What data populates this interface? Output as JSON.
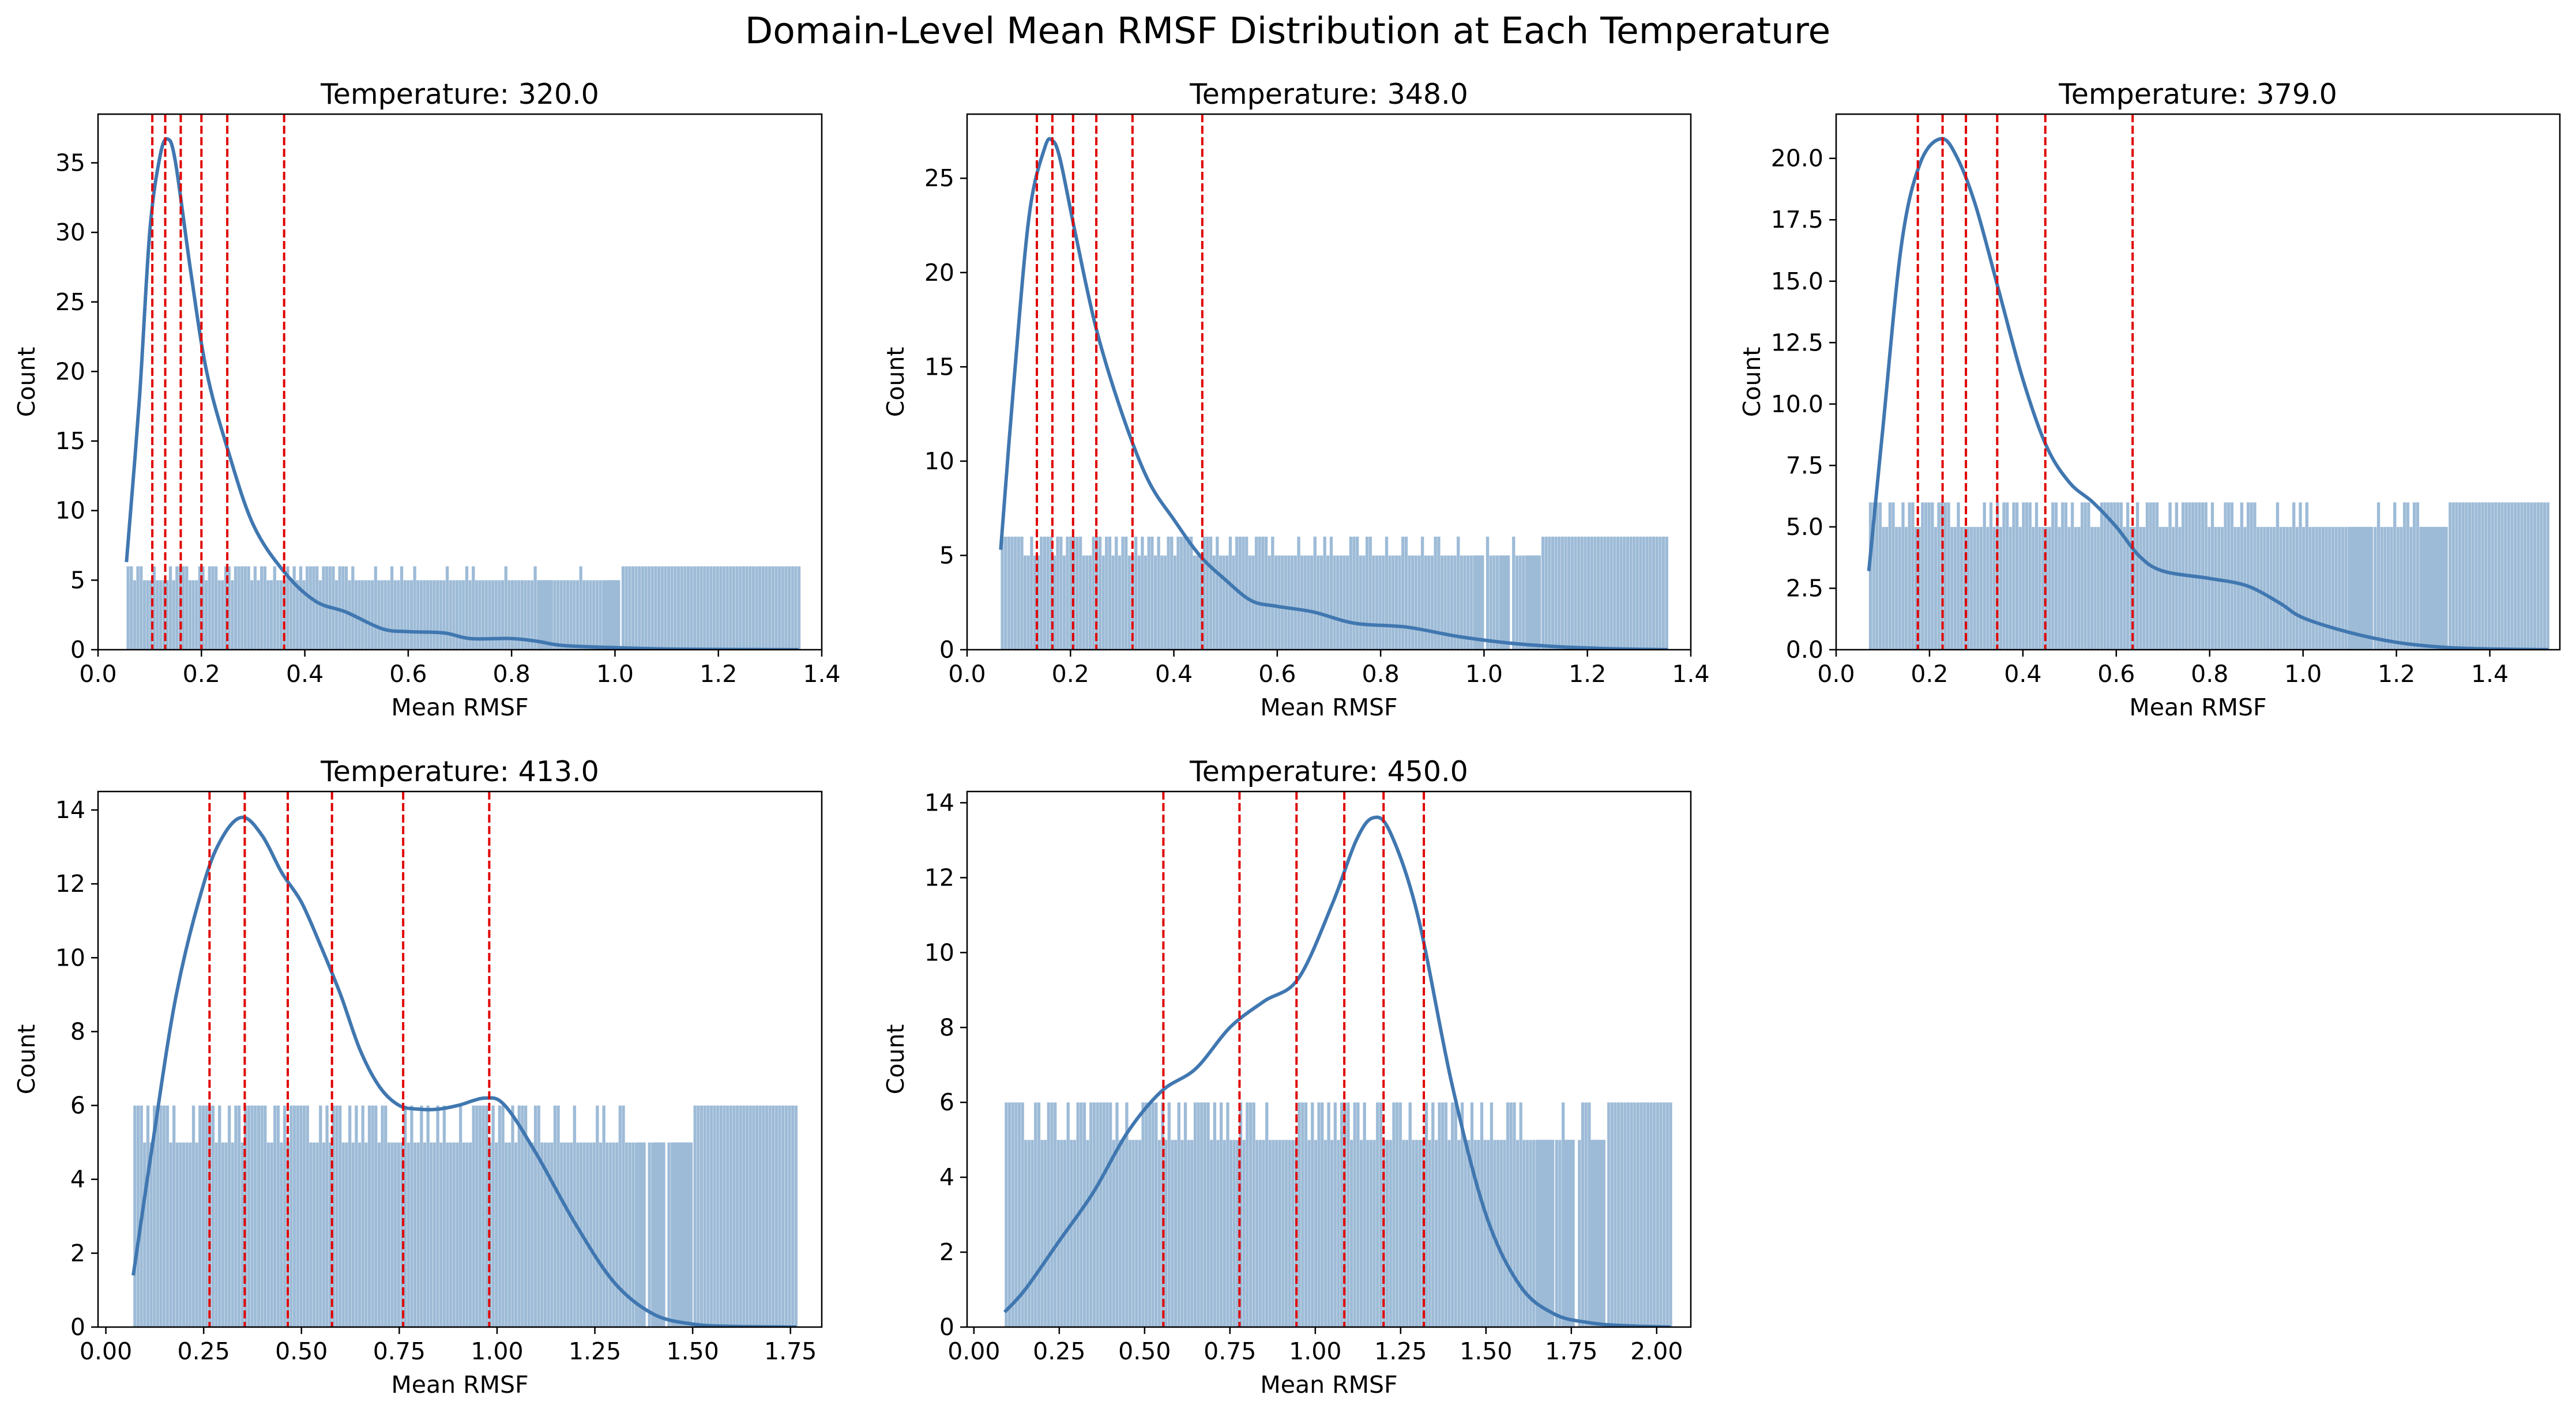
{
  "figure": {
    "title": "Domain-Level Mean RMSF Distribution at Each Temperature",
    "colors": {
      "hist": "#9dbbd7",
      "kde": "#4077b0",
      "vline": "#e00000",
      "axis": "#000000"
    }
  },
  "chart_data": [
    {
      "type": "bar",
      "title": "Temperature: 320.0",
      "xlabel": "Mean RMSF",
      "ylabel": "Count",
      "xlim": [
        0.0,
        1.4
      ],
      "ylim": [
        0,
        38.5
      ],
      "xticks": [
        0.0,
        0.2,
        0.4,
        0.6,
        0.8,
        1.0,
        1.2,
        1.4
      ],
      "xtick_labels": [
        "0.0",
        "0.2",
        "0.4",
        "0.6",
        "0.8",
        "1.0",
        "1.2",
        "1.4"
      ],
      "yticks": [
        0,
        5,
        10,
        15,
        20,
        25,
        30,
        35
      ],
      "ytick_labels": [
        "0",
        "5",
        "10",
        "15",
        "20",
        "25",
        "30",
        "35"
      ],
      "histogram": {
        "x_range": [
          0.055,
          1.355
        ],
        "base_count": 5,
        "top_count": 6,
        "gaps": [
          [
            0.85,
            0.88
          ],
          [
            0.98,
            1.01
          ]
        ],
        "solid_from": 1.01,
        "spike_density_end": 0.6
      },
      "kde": [
        [
          0.055,
          6.3
        ],
        [
          0.08,
          18
        ],
        [
          0.1,
          30
        ],
        [
          0.12,
          35.5
        ],
        [
          0.135,
          36.7
        ],
        [
          0.15,
          35
        ],
        [
          0.18,
          27
        ],
        [
          0.21,
          20
        ],
        [
          0.25,
          14.5
        ],
        [
          0.3,
          9
        ],
        [
          0.36,
          5.6
        ],
        [
          0.42,
          3.5
        ],
        [
          0.48,
          2.7
        ],
        [
          0.55,
          1.5
        ],
        [
          0.6,
          1.3
        ],
        [
          0.67,
          1.2
        ],
        [
          0.72,
          0.8
        ],
        [
          0.8,
          0.8
        ],
        [
          0.85,
          0.6
        ],
        [
          0.9,
          0.3
        ],
        [
          1.0,
          0.15
        ],
        [
          1.1,
          0.05
        ],
        [
          1.2,
          0.02
        ],
        [
          1.355,
          0.0
        ]
      ],
      "vlines": [
        0.105,
        0.13,
        0.16,
        0.2,
        0.25,
        0.36
      ]
    },
    {
      "type": "bar",
      "title": "Temperature: 348.0",
      "xlabel": "Mean RMSF",
      "ylabel": "Count",
      "xlim": [
        0.0,
        1.4
      ],
      "ylim": [
        0,
        28.4
      ],
      "xticks": [
        0.0,
        0.2,
        0.4,
        0.6,
        0.8,
        1.0,
        1.2,
        1.4
      ],
      "xtick_labels": [
        "0.0",
        "0.2",
        "0.4",
        "0.6",
        "0.8",
        "1.0",
        "1.2",
        "1.4"
      ],
      "yticks": [
        0,
        5,
        10,
        15,
        20,
        25
      ],
      "ytick_labels": [
        "0",
        "5",
        "10",
        "15",
        "20",
        "25"
      ],
      "histogram": {
        "x_range": [
          0.065,
          1.355
        ],
        "base_count": 5,
        "top_count": 6,
        "gaps": [
          [
            0.98,
            1.0
          ],
          [
            1.03,
            1.05
          ],
          [
            1.08,
            1.11
          ]
        ],
        "solid_from": 1.11,
        "spike_density_end": 0.8
      },
      "kde": [
        [
          0.065,
          5.3
        ],
        [
          0.09,
          14
        ],
        [
          0.12,
          23
        ],
        [
          0.15,
          26.6
        ],
        [
          0.165,
          27
        ],
        [
          0.18,
          26
        ],
        [
          0.21,
          22
        ],
        [
          0.25,
          17
        ],
        [
          0.3,
          12.5
        ],
        [
          0.35,
          9
        ],
        [
          0.4,
          6.9
        ],
        [
          0.45,
          5
        ],
        [
          0.5,
          3.7
        ],
        [
          0.55,
          2.6
        ],
        [
          0.6,
          2.3
        ],
        [
          0.67,
          2.0
        ],
        [
          0.75,
          1.4
        ],
        [
          0.85,
          1.2
        ],
        [
          0.95,
          0.7
        ],
        [
          1.05,
          0.35
        ],
        [
          1.15,
          0.15
        ],
        [
          1.25,
          0.05
        ],
        [
          1.355,
          0.0
        ]
      ],
      "vlines": [
        0.135,
        0.165,
        0.205,
        0.25,
        0.32,
        0.455
      ]
    },
    {
      "type": "bar",
      "title": "Temperature: 379.0",
      "xlabel": "Mean RMSF",
      "ylabel": "Count",
      "xlim": [
        0.0,
        1.55
      ],
      "ylim": [
        0,
        21.8
      ],
      "xticks": [
        0.0,
        0.2,
        0.4,
        0.6,
        0.8,
        1.0,
        1.2,
        1.4
      ],
      "xtick_labels": [
        "0.0",
        "0.2",
        "0.4",
        "0.6",
        "0.8",
        "1.0",
        "1.2",
        "1.4"
      ],
      "yticks": [
        0,
        2.5,
        5,
        7.5,
        10,
        12.5,
        15,
        17.5,
        20
      ],
      "ytick_labels": [
        "0.0",
        "2.5",
        "5.0",
        "7.5",
        "10.0",
        "12.5",
        "15.0",
        "17.5",
        "20.0"
      ],
      "histogram": {
        "x_range": [
          0.07,
          1.525
        ],
        "base_count": 5,
        "top_count": 6,
        "gaps": [
          [
            1.1,
            1.15
          ],
          [
            1.25,
            1.31
          ]
        ],
        "solid_from": 1.31,
        "spike_density_end": 1.05
      },
      "kde": [
        [
          0.07,
          3.2
        ],
        [
          0.1,
          9
        ],
        [
          0.14,
          16.5
        ],
        [
          0.18,
          19.8
        ],
        [
          0.225,
          20.8
        ],
        [
          0.26,
          20
        ],
        [
          0.3,
          18
        ],
        [
          0.35,
          14.5
        ],
        [
          0.4,
          11
        ],
        [
          0.45,
          8.3
        ],
        [
          0.5,
          6.8
        ],
        [
          0.55,
          6
        ],
        [
          0.6,
          5
        ],
        [
          0.65,
          3.8
        ],
        [
          0.7,
          3.2
        ],
        [
          0.8,
          2.9
        ],
        [
          0.88,
          2.6
        ],
        [
          0.95,
          1.9
        ],
        [
          1.0,
          1.3
        ],
        [
          1.1,
          0.7
        ],
        [
          1.2,
          0.3
        ],
        [
          1.3,
          0.1
        ],
        [
          1.4,
          0.03
        ],
        [
          1.525,
          0.0
        ]
      ],
      "vlines": [
        0.175,
        0.228,
        0.278,
        0.345,
        0.448,
        0.635
      ]
    },
    {
      "type": "bar",
      "title": "Temperature: 413.0",
      "xlabel": "Mean RMSF",
      "ylabel": "Count",
      "xlim": [
        -0.02,
        1.83
      ],
      "ylim": [
        0,
        14.5
      ],
      "xticks": [
        0.0,
        0.25,
        0.5,
        0.75,
        1.0,
        1.25,
        1.5,
        1.75
      ],
      "xtick_labels": [
        "0.00",
        "0.25",
        "0.50",
        "0.75",
        "1.00",
        "1.25",
        "1.50",
        "1.75"
      ],
      "yticks": [
        0,
        2,
        4,
        6,
        8,
        10,
        12,
        14
      ],
      "ytick_labels": [
        "0",
        "2",
        "4",
        "6",
        "8",
        "10",
        "12",
        "14"
      ],
      "histogram": {
        "x_range": [
          0.07,
          1.765
        ],
        "base_count": 5,
        "top_count": 6,
        "gaps": [
          [
            1.36,
            1.38
          ],
          [
            1.4,
            1.43
          ],
          [
            1.45,
            1.5
          ]
        ],
        "solid_from": 1.5,
        "spike_density_end": 1.35
      },
      "kde": [
        [
          0.07,
          1.4
        ],
        [
          0.12,
          5
        ],
        [
          0.18,
          9
        ],
        [
          0.25,
          12
        ],
        [
          0.3,
          13.3
        ],
        [
          0.35,
          13.8
        ],
        [
          0.4,
          13.3
        ],
        [
          0.45,
          12.3
        ],
        [
          0.5,
          11.5
        ],
        [
          0.55,
          10.3
        ],
        [
          0.6,
          9
        ],
        [
          0.65,
          7.5
        ],
        [
          0.7,
          6.5
        ],
        [
          0.75,
          6
        ],
        [
          0.8,
          5.9
        ],
        [
          0.85,
          5.9
        ],
        [
          0.9,
          6
        ],
        [
          0.97,
          6.2
        ],
        [
          1.02,
          6
        ],
        [
          1.1,
          4.7
        ],
        [
          1.2,
          2.8
        ],
        [
          1.3,
          1.2
        ],
        [
          1.4,
          0.35
        ],
        [
          1.5,
          0.08
        ],
        [
          1.6,
          0.02
        ],
        [
          1.765,
          0.0
        ]
      ],
      "vlines": [
        0.265,
        0.355,
        0.465,
        0.578,
        0.76,
        0.98
      ]
    },
    {
      "type": "bar",
      "title": "Temperature: 450.0",
      "xlabel": "Mean RMSF",
      "ylabel": "Count",
      "xlim": [
        -0.02,
        2.1
      ],
      "ylim": [
        0,
        14.3
      ],
      "xticks": [
        0.0,
        0.25,
        0.5,
        0.75,
        1.0,
        1.25,
        1.5,
        1.75,
        2.0
      ],
      "xtick_labels": [
        "0.00",
        "0.25",
        "0.50",
        "0.75",
        "1.00",
        "1.25",
        "1.50",
        "1.75",
        "2.00"
      ],
      "yticks": [
        0,
        2,
        4,
        6,
        8,
        10,
        12,
        14
      ],
      "ytick_labels": [
        "0",
        "2",
        "4",
        "6",
        "8",
        "10",
        "12",
        "14"
      ],
      "histogram": {
        "x_range": [
          0.09,
          2.04
        ],
        "base_count": 5,
        "top_count": 6,
        "gaps": [
          [
            1.65,
            1.7
          ],
          [
            1.73,
            1.76
          ],
          [
            1.8,
            1.85
          ]
        ],
        "solid_from": 1.85,
        "spike_density_end": 1.6
      },
      "kde": [
        [
          0.09,
          0.4
        ],
        [
          0.15,
          1
        ],
        [
          0.25,
          2.3
        ],
        [
          0.35,
          3.6
        ],
        [
          0.45,
          5.2
        ],
        [
          0.55,
          6.3
        ],
        [
          0.65,
          6.9
        ],
        [
          0.75,
          8
        ],
        [
          0.85,
          8.7
        ],
        [
          0.95,
          9.3
        ],
        [
          1.05,
          11.3
        ],
        [
          1.12,
          13
        ],
        [
          1.17,
          13.6
        ],
        [
          1.22,
          13.2
        ],
        [
          1.3,
          11
        ],
        [
          1.4,
          6.5
        ],
        [
          1.5,
          3
        ],
        [
          1.6,
          1.1
        ],
        [
          1.7,
          0.35
        ],
        [
          1.8,
          0.12
        ],
        [
          1.9,
          0.04
        ],
        [
          2.04,
          0.0
        ]
      ],
      "vlines": [
        0.555,
        0.778,
        0.945,
        1.085,
        1.2,
        1.318
      ]
    }
  ]
}
